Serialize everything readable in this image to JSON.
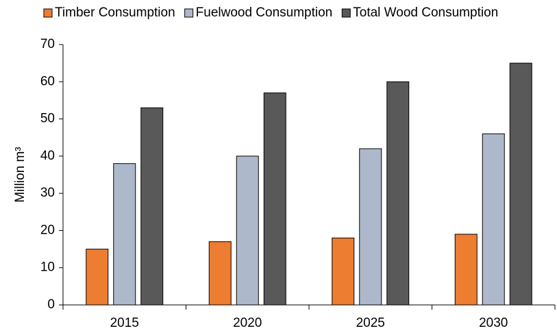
{
  "chart_data": {
    "type": "bar",
    "categories": [
      "2015",
      "2020",
      "2025",
      "2030"
    ],
    "series": [
      {
        "name": "Timber Consumption",
        "color": "#ed7d31",
        "values": [
          15,
          17,
          18,
          19
        ]
      },
      {
        "name": "Fuelwood Consumption",
        "color": "#adb9ca",
        "values": [
          38,
          40,
          42,
          46
        ]
      },
      {
        "name": "Total Wood Consumption",
        "color": "#595959",
        "values": [
          53,
          57,
          60,
          65
        ]
      }
    ],
    "y_label": "Million m³",
    "ylim": [
      0,
      70
    ],
    "yticks": [
      0,
      10,
      20,
      30,
      40,
      50,
      60,
      70
    ],
    "legend": "top",
    "grid": false
  }
}
